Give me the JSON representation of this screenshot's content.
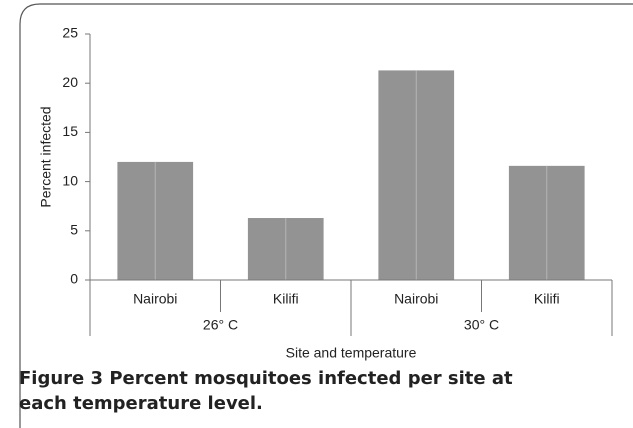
{
  "chart_data": {
    "type": "bar",
    "categories": [
      "Nairobi",
      "Kilifi",
      "Nairobi",
      "Kilifi"
    ],
    "groups": [
      "26° C",
      "30° C"
    ],
    "values": [
      12.0,
      6.3,
      21.3,
      11.6
    ],
    "color": "#939393",
    "ylabel": "Percent  infected",
    "xlabel": "Site and temperature",
    "ylim": [
      0,
      25
    ],
    "yticks": [
      0,
      5,
      10,
      15,
      20,
      25
    ]
  },
  "caption": {
    "label": "Figure 3",
    "text": "Percent mosquitoes infected per site at each temperature level."
  }
}
